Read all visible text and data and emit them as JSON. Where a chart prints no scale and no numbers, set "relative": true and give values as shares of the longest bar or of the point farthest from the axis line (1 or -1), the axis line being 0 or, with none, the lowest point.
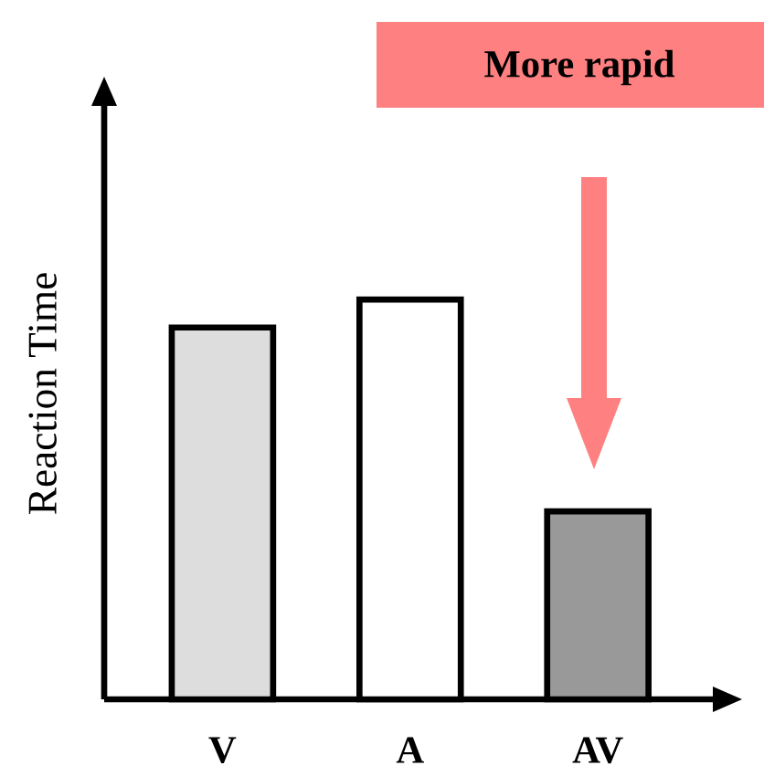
{
  "chart_data": {
    "type": "bar",
    "relative": true,
    "ylabel": "Reaction Time",
    "categories": [
      "V",
      "A",
      "AV"
    ],
    "values": [
      0.93,
      1,
      0.47
    ],
    "colors": [
      "#dddddd",
      "#ffffff",
      "#999999"
    ],
    "annotations": [
      "More rapid"
    ]
  }
}
